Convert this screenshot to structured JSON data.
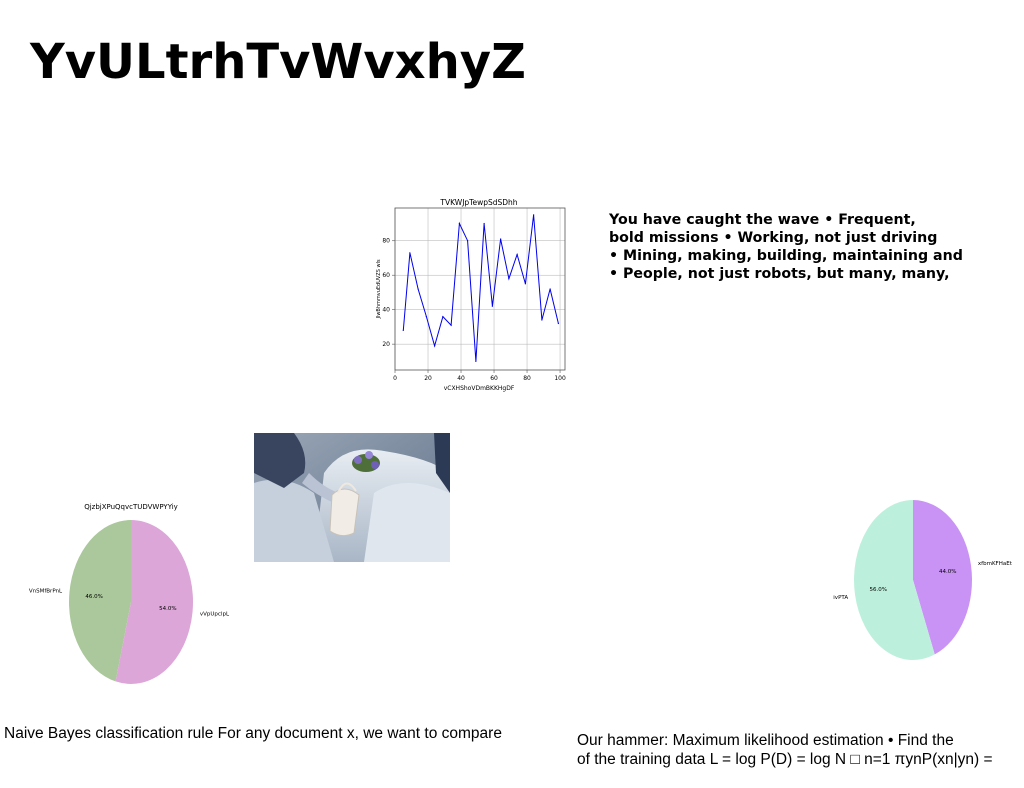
{
  "title": "YvULtrhTvWvxhyZ",
  "bullets": [
    "You have caught the wave • Frequent,",
    "bold missions • Working, not just driving",
    "• Mining, making, building, maintaining and",
    "• People, not just robots, but many, many,"
  ],
  "caption_left": "Naive Bayes classification rule For any document x, we want to compare",
  "caption_right": {
    "line1": "Our hammer: Maximum likelihood estimation • Find the",
    "line2": "of the training data L = log P(D) = log N □ n=1 πynP(xn|yn) ="
  },
  "chart_data": [
    {
      "type": "line",
      "title": "TVKWJpTewpSdSDhh",
      "xlabel": "vCXHShoVDmBKKHgDF",
      "ylabel": "JlwBhmmvuEdUVZS wls",
      "x": [
        5,
        9,
        14,
        19,
        24,
        29,
        34,
        39,
        44,
        49,
        54,
        59,
        64,
        69,
        74,
        79,
        84,
        89,
        94,
        99
      ],
      "series": [
        {
          "values": [
            28,
            73,
            52,
            36,
            19,
            36,
            31,
            90,
            80,
            10,
            90,
            42,
            81,
            58,
            72,
            55,
            95,
            34,
            52,
            32
          ],
          "color": "#0000ee"
        }
      ],
      "xticks": [
        0,
        20,
        40,
        60,
        80,
        100
      ],
      "yticks": [
        20,
        40,
        60,
        80
      ],
      "xlim": [
        0,
        103
      ],
      "ylim": [
        5,
        99
      ],
      "grid": true
    },
    {
      "type": "pie",
      "title": "QjzbjXPuQqvcTUDVWPYYiy",
      "labels": [
        "vVpUpclpL",
        "VnSMfBrPnL"
      ],
      "values": [
        54.0,
        46.0
      ],
      "pct_labels": [
        "54.0%",
        "46.0%"
      ],
      "colors": [
        "#dda6d8",
        "#aac89b"
      ]
    },
    {
      "type": "pie",
      "title": "",
      "labels": [
        "xfbmKFHaEt",
        "ivPTA"
      ],
      "values": [
        44.0,
        56.0
      ],
      "pct_labels": [
        "44.0%",
        "56.0%"
      ],
      "colors": [
        "#c993f5",
        "#bdf0dc"
      ]
    }
  ],
  "colors": {
    "line": "#0000ee",
    "grid": "#b0b0b0",
    "axis": "#555555"
  }
}
